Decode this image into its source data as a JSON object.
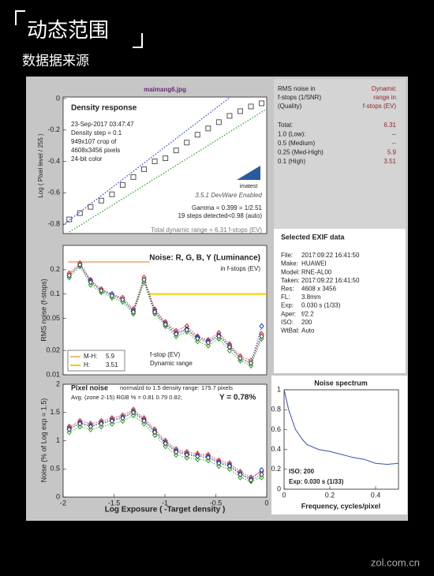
{
  "header": {
    "title": "动态范围",
    "subtitle": "数据据来源"
  },
  "watermark": "zol.com.cn",
  "dr_table": {
    "head_left": [
      "RMS noise in",
      "f-stops (1/SNR)",
      "(Quality)"
    ],
    "head_right": [
      "Dynamic",
      "range in",
      "f-stops (EV)"
    ],
    "rows": [
      [
        "Total:",
        6.31
      ],
      [
        "1.0  (Low):",
        "--"
      ],
      [
        "0.5  (Medium)",
        "--"
      ],
      [
        "0.25 (Med-High)",
        5.9
      ],
      [
        "0.1  (High)",
        3.51
      ]
    ]
  },
  "exif": {
    "title": "Selected EXIF data",
    "rows": [
      [
        "File:",
        "2017:09:22 16:41:50"
      ],
      [
        "Make:",
        "HUAWEI"
      ],
      [
        "Model:",
        "RNE-AL00"
      ],
      [
        "Taken:",
        "2017:09:22 16:41:50"
      ],
      [
        "Res:",
        "4608 x 3456"
      ],
      [
        "FL:",
        "3.8mm"
      ],
      [
        "Exp:",
        "0.030 s   (1/33)"
      ],
      [
        "Aper:",
        "f/2.2"
      ],
      [
        "ISO:",
        "200"
      ],
      [
        "WtBal:",
        "Auto"
      ]
    ]
  },
  "chart_data": [
    {
      "type": "scatter",
      "file": "maimang6.jpg",
      "title": "Density response",
      "y_label": "Log ( Pixel level / 255 )",
      "info": [
        "23-Sep-2017 03:47:47",
        "Density step = 0.1",
        "949x107 crop of",
        "4608x3456 pixels",
        "24-bit color"
      ],
      "logo": "imatest",
      "version": "3.5.1  DevWare Enabled",
      "notes": [
        "Gamma = 0.399 = 1/2.51",
        "19 steps detected<0.98 (auto)"
      ],
      "footer": "Total dynamic range = 6.31 f-stops (EV)",
      "xlim": [
        -2,
        0
      ],
      "ylim": [
        -0.86,
        0.01
      ],
      "yticks": [
        0,
        -0.2,
        -0.4,
        -0.6,
        -0.8
      ],
      "x": [
        -1.94,
        -1.835,
        -1.73,
        -1.625,
        -1.52,
        -1.415,
        -1.31,
        -1.205,
        -1.1,
        -0.995,
        -0.89,
        -0.785,
        -0.68,
        -0.575,
        -0.47,
        -0.365,
        -0.26,
        -0.155,
        -0.05
      ],
      "series": [
        {
          "color": "#555555",
          "values": [
            -0.77,
            -0.73,
            -0.69,
            -0.65,
            -0.61,
            -0.55,
            -0.5,
            -0.45,
            -0.4,
            -0.38,
            -0.33,
            -0.28,
            -0.23,
            -0.19,
            -0.15,
            -0.11,
            -0.08,
            -0.05,
            -0.03
          ]
        }
      ]
    },
    {
      "type": "line",
      "title": "Noise: R, G, B, Y (Luminance)",
      "subtitle": "in f-stops (EV)",
      "y_label": "RMS noise (f-stops)",
      "notes": [
        "f-stop (EV)",
        "Dynamic range"
      ],
      "log": true,
      "xlim": [
        -2,
        0
      ],
      "ylim": [
        0.01,
        0.4
      ],
      "yticks": [
        0.01,
        0.02,
        0.05,
        0.1,
        0.2
      ],
      "x": [
        -1.94,
        -1.835,
        -1.73,
        -1.625,
        -1.52,
        -1.415,
        -1.31,
        -1.205,
        -1.1,
        -0.995,
        -0.89,
        -0.785,
        -0.68,
        -0.575,
        -0.47,
        -0.365,
        -0.26,
        -0.155,
        -0.05
      ],
      "ranges": [
        {
          "name": "M-H:",
          "value": 5.9,
          "level": 0.25,
          "xrange": [
            -1.95,
            -1.15
          ],
          "color": "#f5b48a"
        },
        {
          "name": "H:",
          "value": 3.51,
          "level": 0.1,
          "xrange": [
            -1.15,
            0
          ],
          "color": "#f0d000"
        }
      ],
      "series": [
        {
          "name": "R",
          "color": "#d02020",
          "values": [
            0.18,
            0.24,
            0.15,
            0.115,
            0.1,
            0.09,
            0.065,
            0.16,
            0.065,
            0.045,
            0.035,
            0.04,
            0.03,
            0.027,
            0.033,
            0.024,
            0.017,
            0.015,
            0.032
          ]
        },
        {
          "name": "G",
          "color": "#20a020",
          "values": [
            0.16,
            0.22,
            0.13,
            0.105,
            0.09,
            0.08,
            0.057,
            0.14,
            0.057,
            0.04,
            0.03,
            0.034,
            0.026,
            0.023,
            0.028,
            0.02,
            0.015,
            0.013,
            0.028
          ]
        },
        {
          "name": "B",
          "color": "#2040d0",
          "values": [
            0.17,
            0.23,
            0.145,
            0.11,
            0.1,
            0.085,
            0.062,
            0.15,
            0.062,
            0.043,
            0.033,
            0.037,
            0.029,
            0.026,
            0.031,
            0.023,
            0.016,
            0.014,
            0.04
          ]
        },
        {
          "name": "Y",
          "color": "#404040",
          "values": [
            0.17,
            0.23,
            0.14,
            0.11,
            0.095,
            0.085,
            0.06,
            0.15,
            0.06,
            0.042,
            0.032,
            0.036,
            0.028,
            0.025,
            0.03,
            0.022,
            0.016,
            0.014,
            0.03
          ]
        }
      ]
    },
    {
      "type": "line",
      "title": "Pixel noise",
      "subtitle": "normalzd to 1.5 density range: 175.7 pixels",
      "notes": [
        "Avg. (zone 2-15) RGB % = 0.81  0.79  0.82;",
        "Y = 0.78%"
      ],
      "y_label": "Noise (% of Log exp = 1.5)",
      "x_label": "Log Exposure ( -Target density )",
      "xlim": [
        -2,
        0
      ],
      "ylim": [
        0,
        2
      ],
      "xticks": [
        -2,
        -1.5,
        -1,
        -0.5,
        0
      ],
      "yticks": [
        0,
        0.5,
        1,
        1.5,
        2
      ],
      "x": [
        -1.94,
        -1.835,
        -1.73,
        -1.625,
        -1.52,
        -1.415,
        -1.31,
        -1.205,
        -1.1,
        -0.995,
        -0.89,
        -0.785,
        -0.68,
        -0.575,
        -0.47,
        -0.365,
        -0.26,
        -0.155,
        -0.05
      ],
      "series": [
        {
          "name": "R",
          "color": "#d02020",
          "values": [
            1.25,
            1.35,
            1.3,
            1.35,
            1.4,
            1.45,
            1.55,
            1.4,
            1.2,
            1.0,
            0.85,
            0.8,
            0.77,
            0.75,
            0.65,
            0.6,
            0.45,
            0.35,
            0.45
          ]
        },
        {
          "name": "G",
          "color": "#20a020",
          "values": [
            1.15,
            1.25,
            1.2,
            1.25,
            1.3,
            1.35,
            1.45,
            1.3,
            1.1,
            0.9,
            0.75,
            0.7,
            0.67,
            0.65,
            0.55,
            0.5,
            0.35,
            0.28,
            0.35
          ]
        },
        {
          "name": "B",
          "color": "#2040d0",
          "values": [
            1.22,
            1.32,
            1.27,
            1.32,
            1.37,
            1.42,
            1.52,
            1.37,
            1.17,
            0.97,
            0.82,
            0.77,
            0.74,
            0.72,
            0.62,
            0.57,
            0.42,
            0.32,
            0.48
          ]
        },
        {
          "name": "Y",
          "color": "#404040",
          "values": [
            1.2,
            1.3,
            1.25,
            1.3,
            1.35,
            1.4,
            1.5,
            1.35,
            1.15,
            0.95,
            0.8,
            0.75,
            0.72,
            0.7,
            0.6,
            0.55,
            0.4,
            0.3,
            0.4
          ]
        }
      ]
    },
    {
      "type": "line",
      "title": "Noise spectrum",
      "x_label": "Frequency, cycles/pixel",
      "notes": [
        "ISO:   200",
        "Exp:  0.030 s   (1/33)"
      ],
      "xlim": [
        0,
        0.5
      ],
      "ylim": [
        0,
        1
      ],
      "xticks": [
        0,
        0.2,
        0.4
      ],
      "yticks": [
        0,
        0.2,
        0.4,
        0.6,
        0.8,
        1
      ],
      "x": [
        0,
        0.02,
        0.05,
        0.08,
        0.1,
        0.15,
        0.2,
        0.25,
        0.3,
        0.35,
        0.4,
        0.45,
        0.5
      ],
      "series": [
        {
          "color": "#3a4fb0",
          "values": [
            1,
            0.8,
            0.6,
            0.5,
            0.45,
            0.4,
            0.38,
            0.35,
            0.32,
            0.3,
            0.26,
            0.25,
            0.26
          ]
        }
      ]
    }
  ]
}
